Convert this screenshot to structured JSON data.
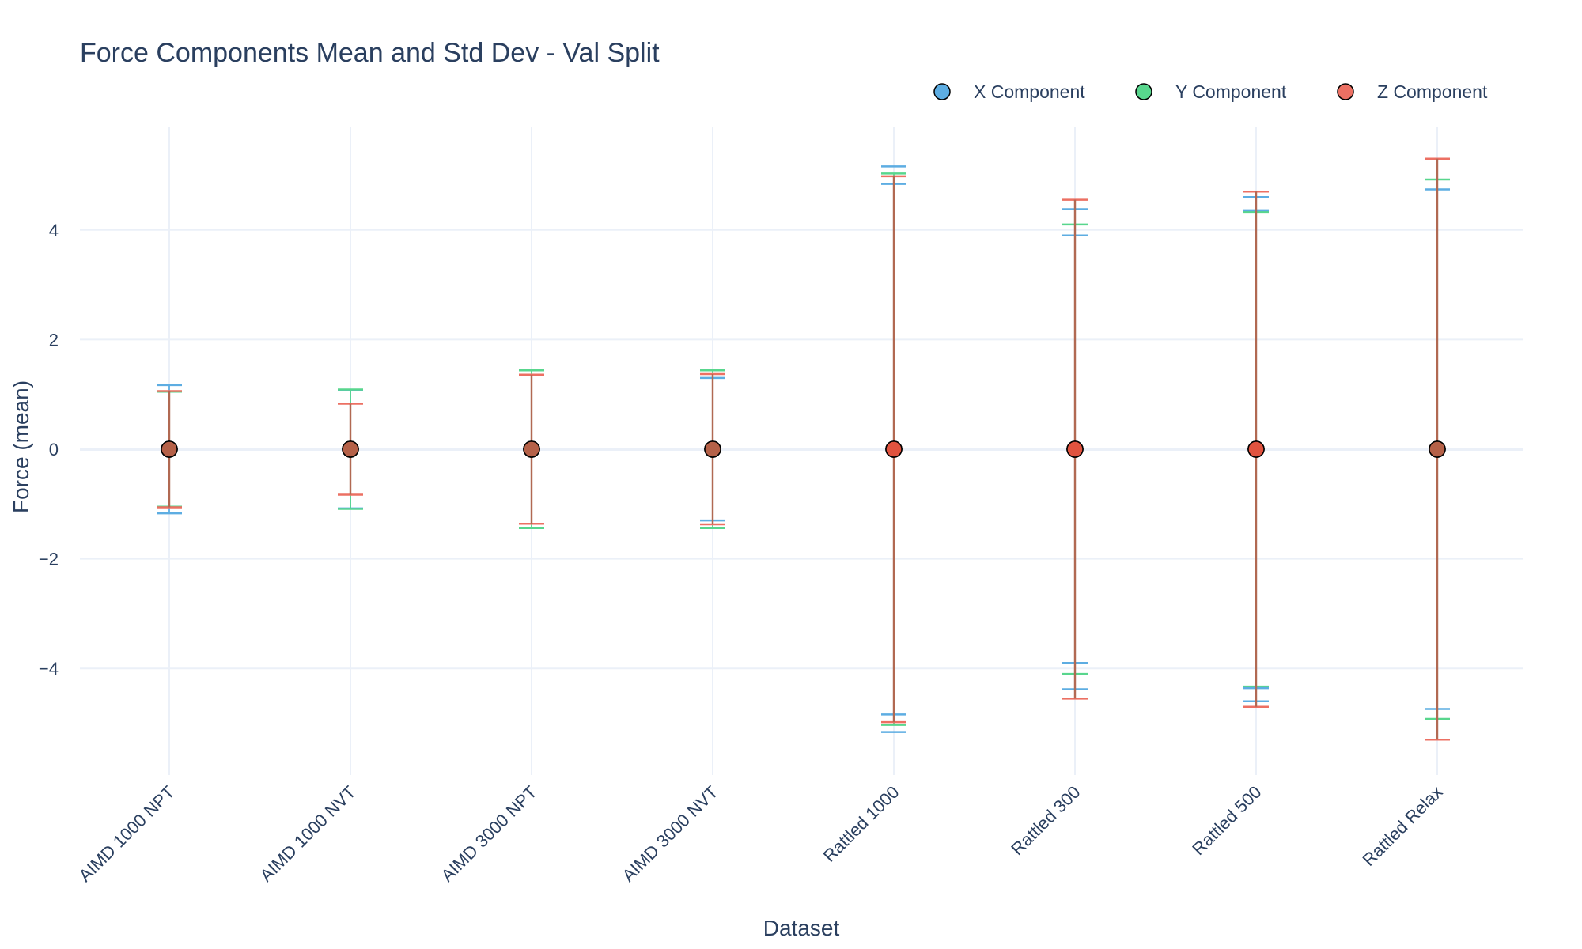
{
  "chart_data": {
    "type": "scatter",
    "title": "Force Components Mean and Std Dev - Val Split",
    "xlabel": "Dataset",
    "ylabel": "Force (mean)",
    "categories": [
      "AIMD 1000 NPT",
      "AIMD 1000 NVT",
      "AIMD 3000 NPT",
      "AIMD 3000 NVT",
      "Rattled 1000",
      "Rattled 300",
      "Rattled 500",
      "Rattled Relax"
    ],
    "ylim": [
      -6,
      6
    ],
    "yticks": [
      -4,
      -2,
      0,
      2,
      4
    ],
    "ytick_labels": [
      "−4",
      "−2",
      "0",
      "2",
      "4"
    ],
    "grid": true,
    "legend_position": "top-right",
    "series": [
      {
        "name": "X Component",
        "color": "#5dade2",
        "mean": [
          0,
          0,
          0,
          0,
          0,
          0,
          0,
          0
        ],
        "std": [
          1.17,
          1.08,
          1.36,
          1.3,
          4.84,
          3.9,
          4.6,
          4.74
        ]
      },
      {
        "name": "Y Component",
        "color": "#58d68d",
        "mean": [
          0,
          0,
          0,
          0,
          0,
          0,
          0,
          0
        ],
        "std": [
          1.05,
          1.09,
          1.44,
          1.44,
          5.03,
          4.1,
          4.33,
          4.92
        ]
      },
      {
        "name": "Z Component",
        "color": "#ec7063",
        "mean": [
          0,
          0,
          0,
          0,
          0,
          0,
          0,
          0
        ],
        "std": [
          1.06,
          0.83,
          1.36,
          1.37,
          4.98,
          4.55,
          4.7,
          5.3
        ]
      }
    ],
    "extra_caps": [
      {
        "series": 0,
        "category": 4,
        "value": 5.16
      },
      {
        "series": 0,
        "category": 5,
        "value": 4.38
      },
      {
        "series": 0,
        "category": 6,
        "value": 4.36
      }
    ]
  }
}
